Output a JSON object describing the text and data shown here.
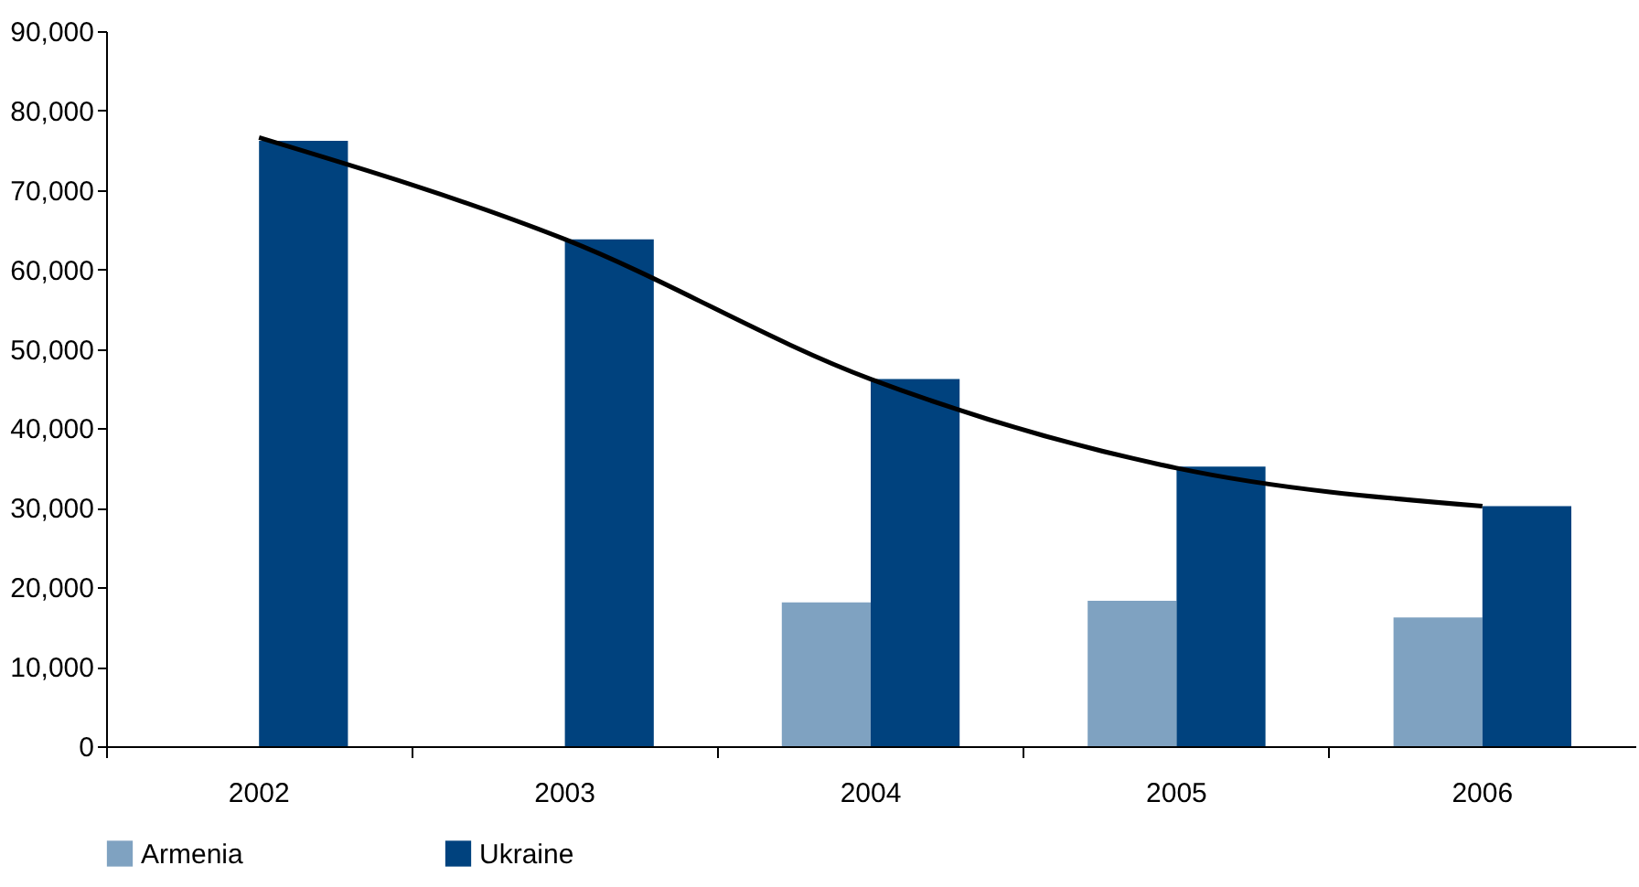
{
  "chart_data": {
    "type": "bar",
    "categories": [
      "2002",
      "2003",
      "2004",
      "2005",
      "2006"
    ],
    "series": [
      {
        "name": "Armenia",
        "color": "#7fa2c1",
        "values": [
          null,
          null,
          18100,
          18300,
          16200
        ]
      },
      {
        "name": "Ukraine",
        "color": "#00427e",
        "values": [
          76200,
          63800,
          46200,
          35200,
          30200
        ]
      },
      {
        "type": "line",
        "color": "#000000",
        "values": [
          76600,
          63800,
          46200,
          35000,
          30200
        ]
      }
    ],
    "ylim": [
      0,
      90000
    ],
    "yticks": [
      0,
      {
        "value": 10000,
        "label": "10,000"
      },
      {
        "value": 20000,
        "label": "20,000"
      },
      {
        "value": 30000,
        "label": "30,000"
      },
      {
        "value": 40000,
        "label": "40,000"
      },
      {
        "value": 50000,
        "label": "50,000"
      },
      {
        "value": 60000,
        "label": "60,000"
      },
      {
        "value": 70000,
        "label": "70,000"
      },
      {
        "value": 80000,
        "label": "80,000"
      },
      {
        "value": 90000,
        "label": "90,000"
      }
    ],
    "grid": false,
    "legend": "bottom"
  }
}
